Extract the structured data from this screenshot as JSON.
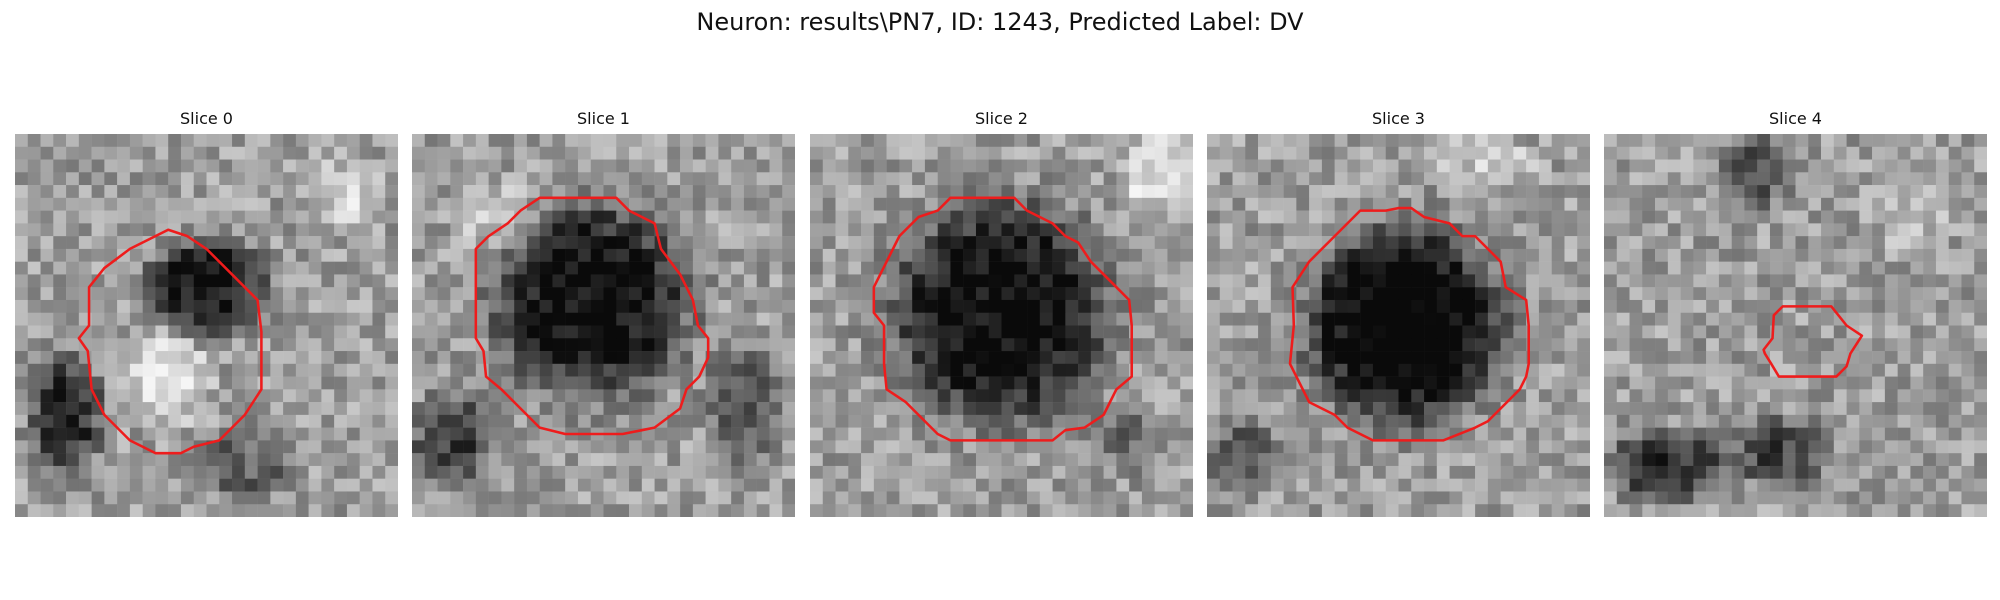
{
  "figure": {
    "title": "Neuron: results\\PN7, ID: 1243, Predicted Label: DV"
  },
  "slices": [
    {
      "title": "Slice 0"
    },
    {
      "title": "Slice 1"
    },
    {
      "title": "Slice 2"
    },
    {
      "title": "Slice 3"
    },
    {
      "title": "Slice 4"
    }
  ],
  "colors": {
    "contour": "#ee1c1c"
  }
}
